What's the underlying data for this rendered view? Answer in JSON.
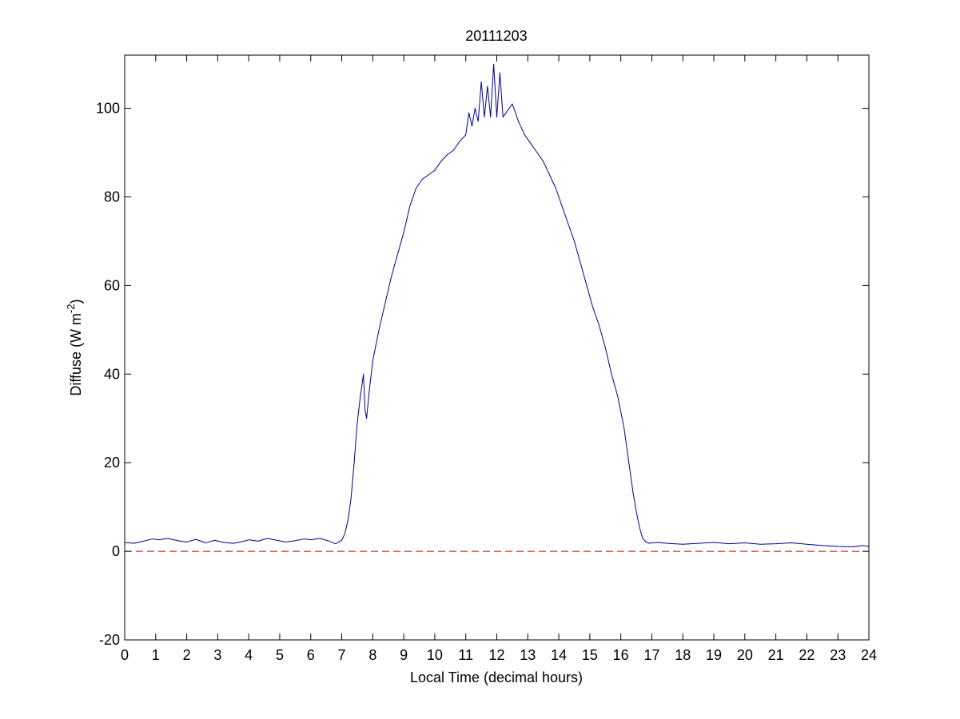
{
  "chart_data": {
    "type": "line",
    "title": "20111203",
    "xlabel": "Local Time (decimal hours)",
    "ylabel": {
      "prefix": "Diffuse (W m",
      "superscript": "-2",
      "suffix": ")"
    },
    "xlim": [
      0,
      24
    ],
    "ylim": [
      -20,
      112
    ],
    "xticks": [
      0,
      1,
      2,
      3,
      4,
      5,
      6,
      7,
      8,
      9,
      10,
      11,
      12,
      13,
      14,
      15,
      16,
      17,
      18,
      19,
      20,
      21,
      22,
      23,
      24
    ],
    "yticks": [
      -20,
      0,
      20,
      40,
      60,
      80,
      100
    ],
    "grid": false,
    "legend": "none",
    "series": [
      {
        "color": "#00008b",
        "style": "solid",
        "x": [
          0,
          0.3,
          0.6,
          0.9,
          1.1,
          1.4,
          1.7,
          2.0,
          2.3,
          2.6,
          2.9,
          3.2,
          3.5,
          3.8,
          4.0,
          4.3,
          4.6,
          4.9,
          5.2,
          5.5,
          5.8,
          6.0,
          6.3,
          6.6,
          6.8,
          7.0,
          7.1,
          7.2,
          7.3,
          7.4,
          7.5,
          7.6,
          7.7,
          7.75,
          7.8,
          7.9,
          8.0,
          8.2,
          8.4,
          8.6,
          8.8,
          9.0,
          9.2,
          9.4,
          9.6,
          9.8,
          10.0,
          10.2,
          10.4,
          10.6,
          10.8,
          11.0,
          11.1,
          11.2,
          11.3,
          11.4,
          11.5,
          11.6,
          11.7,
          11.8,
          11.9,
          12.0,
          12.1,
          12.2,
          12.3,
          12.5,
          12.7,
          12.9,
          13.1,
          13.3,
          13.5,
          13.7,
          13.9,
          14.1,
          14.3,
          14.5,
          14.7,
          14.9,
          15.1,
          15.3,
          15.5,
          15.7,
          15.9,
          16.1,
          16.2,
          16.3,
          16.4,
          16.5,
          16.6,
          16.7,
          16.8,
          16.9,
          17.0,
          17.2,
          17.5,
          18.0,
          18.5,
          19.0,
          19.5,
          20.0,
          20.5,
          21.0,
          21.5,
          22.0,
          22.5,
          23.0,
          23.5,
          23.8,
          24.0
        ],
        "y": [
          2.0,
          1.8,
          2.3,
          2.8,
          2.6,
          2.9,
          2.4,
          2.1,
          2.7,
          1.9,
          2.5,
          2.0,
          1.8,
          2.2,
          2.6,
          2.3,
          2.9,
          2.5,
          2.1,
          2.4,
          2.8,
          2.6,
          2.9,
          2.3,
          1.7,
          2.5,
          4.0,
          7.0,
          12.0,
          20.0,
          29.0,
          35.0,
          40.0,
          32.0,
          30.0,
          37.0,
          43.0,
          50.0,
          56.0,
          62.0,
          67.0,
          72.0,
          78.0,
          82.0,
          84.0,
          85.0,
          86.0,
          88.0,
          89.5,
          90.5,
          92.5,
          94.0,
          99.0,
          96.0,
          100.0,
          97.0,
          106.0,
          98.0,
          105.0,
          98.0,
          110.0,
          98.0,
          108.0,
          98.0,
          99.0,
          101.0,
          97.0,
          94.0,
          92.0,
          90.0,
          88.0,
          85.0,
          82.0,
          78.0,
          74.0,
          70.0,
          65.0,
          60.0,
          55.0,
          51.0,
          46.0,
          40.0,
          35.0,
          28.0,
          23.0,
          18.0,
          13.0,
          9.0,
          5.5,
          3.0,
          2.2,
          1.8,
          1.9,
          2.0,
          1.8,
          1.6,
          1.8,
          2.0,
          1.7,
          1.9,
          1.6,
          1.7,
          1.9,
          1.6,
          1.3,
          1.1,
          1.0,
          1.3,
          1.1
        ]
      },
      {
        "color": "#cc0000",
        "style": "dashed",
        "x": [
          0,
          24
        ],
        "y": [
          0,
          0
        ]
      }
    ]
  }
}
